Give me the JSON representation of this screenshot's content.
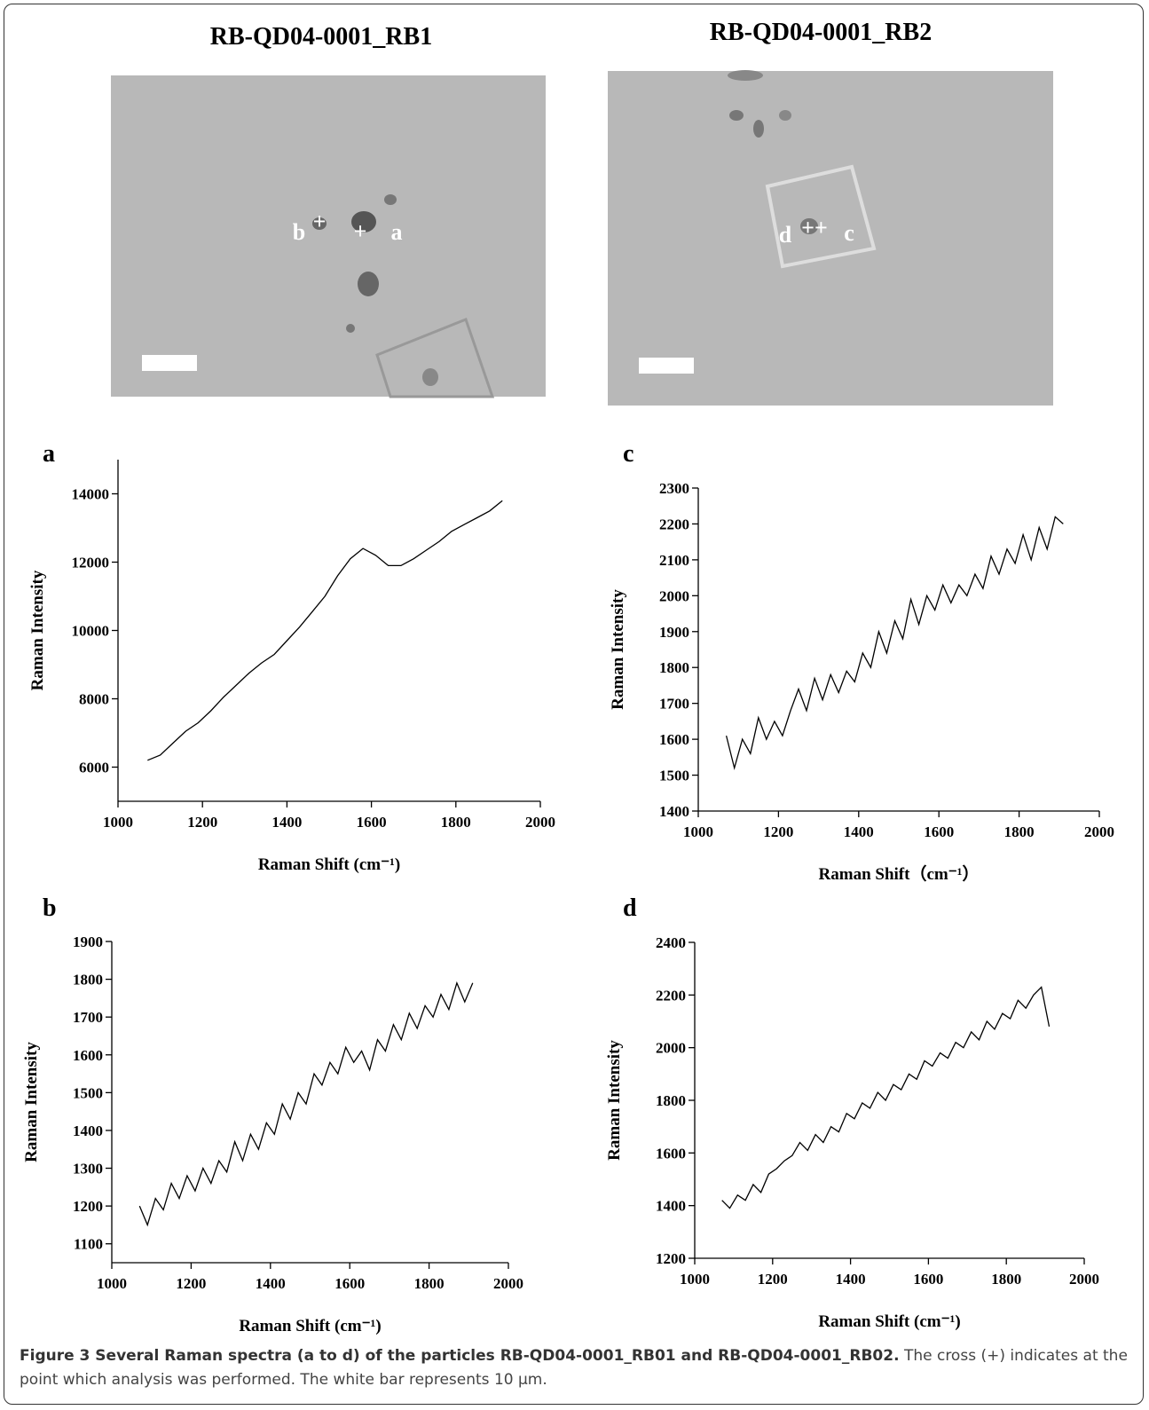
{
  "header": {
    "left_title": "RB-QD04-0001_RB1",
    "right_title": "RB-QD04-0001_RB2"
  },
  "images": {
    "left_markers": [
      "b",
      "a"
    ],
    "right_markers": [
      "d",
      "c"
    ]
  },
  "chart_data": [
    {
      "type": "line",
      "label": "a",
      "xlabel": "Raman Shift (cm⁻¹)",
      "ylabel": "Raman Intensity",
      "color": "#000000",
      "x": [
        1070,
        1100,
        1130,
        1160,
        1190,
        1220,
        1250,
        1280,
        1310,
        1340,
        1370,
        1400,
        1430,
        1460,
        1490,
        1520,
        1550,
        1580,
        1610,
        1640,
        1670,
        1700,
        1730,
        1760,
        1790,
        1820,
        1850,
        1880,
        1910
      ],
      "values": [
        6200,
        6350,
        6700,
        7050,
        7300,
        7650,
        8050,
        8400,
        8750,
        9050,
        9300,
        9700,
        10100,
        10550,
        11000,
        11600,
        12100,
        12400,
        12200,
        11900,
        11900,
        12100,
        12350,
        12600,
        12900,
        13100,
        13300,
        13500,
        13800
      ],
      "xlim": [
        1000,
        2000
      ],
      "xticks": [
        1000,
        1200,
        1400,
        1600,
        1800,
        2000
      ],
      "ylim": [
        5000,
        15000
      ],
      "yticks": [
        6000,
        8000,
        10000,
        12000,
        14000
      ]
    },
    {
      "type": "line",
      "label": "c",
      "xlabel": "Raman Shift（cm⁻¹）",
      "ylabel": "Raman Intensity",
      "color": "#000000",
      "x": [
        1070,
        1090,
        1110,
        1130,
        1150,
        1170,
        1190,
        1210,
        1230,
        1250,
        1270,
        1290,
        1310,
        1330,
        1350,
        1370,
        1390,
        1410,
        1430,
        1450,
        1470,
        1490,
        1510,
        1530,
        1550,
        1570,
        1590,
        1610,
        1630,
        1650,
        1670,
        1690,
        1710,
        1730,
        1750,
        1770,
        1790,
        1810,
        1830,
        1850,
        1870,
        1890,
        1910
      ],
      "values": [
        1610,
        1520,
        1600,
        1560,
        1660,
        1600,
        1650,
        1610,
        1680,
        1740,
        1680,
        1770,
        1710,
        1780,
        1730,
        1790,
        1760,
        1840,
        1800,
        1900,
        1840,
        1930,
        1880,
        1990,
        1920,
        2000,
        1960,
        2030,
        1980,
        2030,
        2000,
        2060,
        2020,
        2110,
        2060,
        2130,
        2090,
        2170,
        2100,
        2190,
        2130,
        2220,
        2200
      ],
      "xlim": [
        1000,
        2000
      ],
      "xticks": [
        1000,
        1200,
        1400,
        1600,
        1800,
        2000
      ],
      "ylim": [
        1400,
        2300
      ],
      "yticks": [
        1400,
        1500,
        1600,
        1700,
        1800,
        1900,
        2000,
        2100,
        2200,
        2300
      ]
    },
    {
      "type": "line",
      "label": "b",
      "xlabel": "Raman Shift (cm⁻¹)",
      "ylabel": "Raman Intensity",
      "color": "#000000",
      "x": [
        1070,
        1090,
        1110,
        1130,
        1150,
        1170,
        1190,
        1210,
        1230,
        1250,
        1270,
        1290,
        1310,
        1330,
        1350,
        1370,
        1390,
        1410,
        1430,
        1450,
        1470,
        1490,
        1510,
        1530,
        1550,
        1570,
        1590,
        1610,
        1630,
        1650,
        1670,
        1690,
        1710,
        1730,
        1750,
        1770,
        1790,
        1810,
        1830,
        1850,
        1870,
        1890,
        1910
      ],
      "values": [
        1200,
        1150,
        1220,
        1190,
        1260,
        1220,
        1280,
        1240,
        1300,
        1260,
        1320,
        1290,
        1370,
        1320,
        1390,
        1350,
        1420,
        1390,
        1470,
        1430,
        1500,
        1470,
        1550,
        1520,
        1580,
        1550,
        1620,
        1580,
        1610,
        1560,
        1640,
        1610,
        1680,
        1640,
        1710,
        1670,
        1730,
        1700,
        1760,
        1720,
        1790,
        1740,
        1790
      ],
      "xlim": [
        1000,
        2000
      ],
      "xticks": [
        1000,
        1200,
        1400,
        1600,
        1800,
        2000
      ],
      "ylim": [
        1050,
        1900
      ],
      "yticks": [
        1100,
        1200,
        1300,
        1400,
        1500,
        1600,
        1700,
        1800,
        1900
      ]
    },
    {
      "type": "line",
      "label": "d",
      "xlabel": "Raman Shift (cm⁻¹)",
      "ylabel": "Raman Intensity",
      "color": "#000000",
      "x": [
        1070,
        1090,
        1110,
        1130,
        1150,
        1170,
        1190,
        1210,
        1230,
        1250,
        1270,
        1290,
        1310,
        1330,
        1350,
        1370,
        1390,
        1410,
        1430,
        1450,
        1470,
        1490,
        1510,
        1530,
        1550,
        1570,
        1590,
        1610,
        1630,
        1650,
        1670,
        1690,
        1710,
        1730,
        1750,
        1770,
        1790,
        1810,
        1830,
        1850,
        1870,
        1890,
        1910
      ],
      "values": [
        1420,
        1390,
        1440,
        1420,
        1480,
        1450,
        1520,
        1540,
        1570,
        1590,
        1640,
        1610,
        1670,
        1640,
        1700,
        1680,
        1750,
        1730,
        1790,
        1770,
        1830,
        1800,
        1860,
        1840,
        1900,
        1880,
        1950,
        1930,
        1980,
        1960,
        2020,
        2000,
        2060,
        2030,
        2100,
        2070,
        2130,
        2110,
        2180,
        2150,
        2200,
        2230,
        2080
      ],
      "xlim": [
        1000,
        2000
      ],
      "xticks": [
        1000,
        1200,
        1400,
        1600,
        1800,
        2000
      ],
      "ylim": [
        1200,
        2400
      ],
      "yticks": [
        1200,
        1400,
        1600,
        1800,
        2000,
        2200,
        2400
      ]
    }
  ],
  "caption": {
    "bold": "Figure 3 Several Raman spectra (a to d) of the particles RB-QD04-0001_RB01 and RB-QD04-0001_RB02.",
    "text": " The cross (+) indicates at the point which analysis was performed. The white bar represents 10 µm."
  }
}
